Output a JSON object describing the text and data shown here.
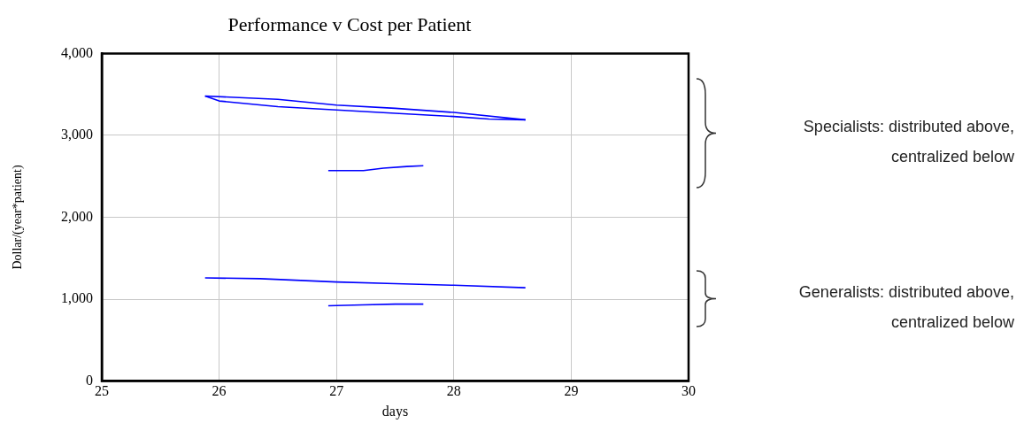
{
  "chart_data": {
    "type": "line",
    "title": "Performance v Cost per Patient",
    "xlabel": "days",
    "ylabel": "Dollar/(year*patient)",
    "xlim": [
      25,
      30
    ],
    "xticks": [
      25,
      26,
      27,
      28,
      29,
      30
    ],
    "ylim": [
      0,
      4000
    ],
    "yticks": [
      {
        "value": 0,
        "label": "0"
      },
      {
        "value": 1000,
        "label": "1,000"
      },
      {
        "value": 2000,
        "label": "2,000"
      },
      {
        "value": 3000,
        "label": "3,000"
      },
      {
        "value": 4000,
        "label": "4,000"
      }
    ],
    "grid": true,
    "legend": false,
    "marker": "none",
    "line_style": "solid",
    "series": [
      {
        "color": "#0000ff",
        "x": [
          25.88,
          26.5,
          27,
          27.5,
          28,
          28.61
        ],
        "values": [
          3480,
          3440,
          3370,
          3330,
          3280,
          3190
        ]
      },
      {
        "color": "#0000ff",
        "x": [
          25.88,
          26,
          26.5,
          27,
          27.5,
          28,
          28.3,
          28.61
        ],
        "values": [
          3480,
          3420,
          3350,
          3310,
          3270,
          3230,
          3200,
          3190
        ]
      },
      {
        "color": "#0000ff",
        "x": [
          26.93,
          27.23,
          27.4,
          27.6,
          27.74
        ],
        "values": [
          2570,
          2570,
          2600,
          2620,
          2630
        ]
      },
      {
        "color": "#0000ff",
        "x": [
          25.88,
          26.35,
          27,
          27.5,
          28,
          28.61
        ],
        "values": [
          1260,
          1250,
          1210,
          1190,
          1170,
          1140
        ]
      },
      {
        "color": "#0000ff",
        "x": [
          26.93,
          27.22,
          27.5,
          27.74
        ],
        "values": [
          920,
          930,
          940,
          940
        ]
      }
    ],
    "annotations": [
      "Specialists: distributed above, centralized below",
      "Generalists: distributed above, centralized below"
    ]
  }
}
